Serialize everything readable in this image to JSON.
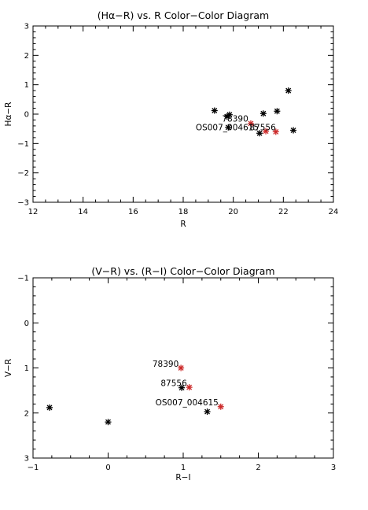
{
  "chart_data": [
    {
      "type": "scatter",
      "title": "(Hα−R) vs. R Color−Color Diagram",
      "xlabel": "R",
      "ylabel": "Hα−R",
      "xlim": [
        12,
        24
      ],
      "ylim": [
        -3,
        3
      ],
      "y_inverted": false,
      "xticks": [
        "12",
        "14",
        "16",
        "18",
        "20",
        "22",
        "24"
      ],
      "yticks": [
        "−3",
        "−2",
        "−1",
        "0",
        "1",
        "2",
        "3"
      ],
      "series": [
        {
          "marker": "asterisk",
          "color": "#000000",
          "points": [
            {
              "x": 19.25,
              "y": 0.12
            },
            {
              "x": 19.75,
              "y": -0.08
            },
            {
              "x": 19.85,
              "y": -0.02
            },
            {
              "x": 19.8,
              "y": -0.45
            },
            {
              "x": 21.05,
              "y": -0.65
            },
            {
              "x": 21.2,
              "y": 0.02
            },
            {
              "x": 21.75,
              "y": 0.1
            },
            {
              "x": 22.2,
              "y": 0.8
            },
            {
              "x": 22.4,
              "y": -0.55
            }
          ]
        },
        {
          "marker": "asterisk",
          "color": "#cc2a2a",
          "points": [
            {
              "x": 20.7,
              "y": -0.32
            },
            {
              "x": 21.3,
              "y": -0.58
            },
            {
              "x": 21.7,
              "y": -0.6
            }
          ]
        }
      ],
      "annotations": [
        {
          "text": "78390",
          "x": 20.6,
          "y": -0.25
        },
        {
          "text": "OS007_004615",
          "x": 21.02,
          "y": -0.55
        },
        {
          "text": "87556",
          "x": 21.7,
          "y": -0.55
        }
      ]
    },
    {
      "type": "scatter",
      "title": "(V−R) vs. (R−I) Color−Color Diagram",
      "xlabel": "R−I",
      "ylabel": "V−R",
      "xlim": [
        -1,
        3
      ],
      "ylim": [
        3,
        -1
      ],
      "y_inverted": true,
      "xticks": [
        "−1",
        "0",
        "1",
        "2",
        "3"
      ],
      "yticks": [
        "−1",
        "0",
        "1",
        "2",
        "3"
      ],
      "series": [
        {
          "marker": "asterisk",
          "color": "#000000",
          "points": [
            {
              "x": -0.78,
              "y": 1.88
            },
            {
              "x": 0.0,
              "y": 2.2
            },
            {
              "x": 0.98,
              "y": 1.44
            },
            {
              "x": 1.32,
              "y": 1.97
            }
          ]
        },
        {
          "marker": "asterisk",
          "color": "#cc2a2a",
          "points": [
            {
              "x": 0.97,
              "y": 1.0
            },
            {
              "x": 1.08,
              "y": 1.43
            },
            {
              "x": 1.5,
              "y": 1.86
            }
          ]
        }
      ],
      "annotations": [
        {
          "text": "78390",
          "x": 0.94,
          "y": 0.97
        },
        {
          "text": "87556",
          "x": 1.05,
          "y": 1.4
        },
        {
          "text": "OS007_004615",
          "x": 1.47,
          "y": 1.83
        }
      ]
    }
  ]
}
